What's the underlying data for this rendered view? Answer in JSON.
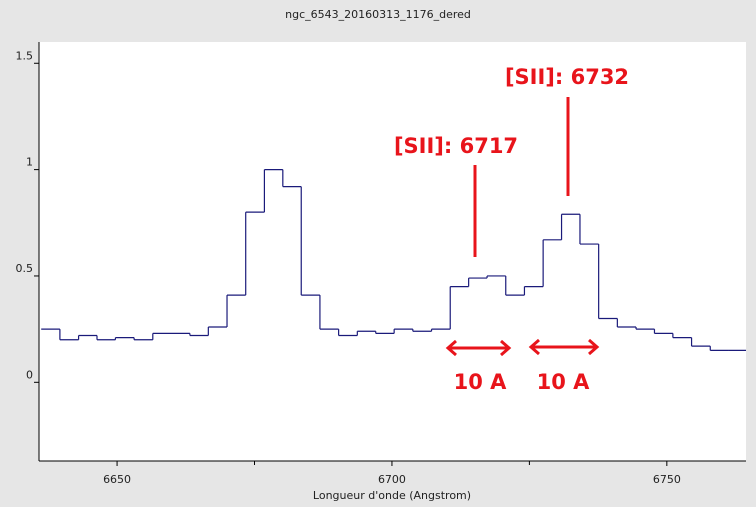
{
  "chart_data": {
    "type": "step",
    "title": "ngc_6543_20160313_1176_dered",
    "x_label": "Longueur d'onde (Angstrom)",
    "x": [
      6637.9,
      6641.3,
      6644.7,
      6648.0,
      6651.4,
      6654.8,
      6658.2,
      6661.6,
      6664.9,
      6668.3,
      6671.7,
      6675.1,
      6678.5,
      6681.8,
      6685.2,
      6688.6,
      6692.0,
      6695.4,
      6698.7,
      6702.1,
      6705.5,
      6708.9,
      6712.3,
      6715.6,
      6719.0,
      6722.4,
      6725.8,
      6729.2,
      6732.5,
      6735.9,
      6739.3,
      6742.7,
      6746.1,
      6749.4,
      6752.8,
      6756.2,
      6759.6,
      6763.0
    ],
    "values": [
      0.25,
      0.2,
      0.22,
      0.2,
      0.21,
      0.2,
      0.23,
      0.23,
      0.22,
      0.26,
      0.41,
      0.8,
      1.0,
      0.92,
      0.41,
      0.25,
      0.22,
      0.24,
      0.23,
      0.25,
      0.24,
      0.25,
      0.45,
      0.49,
      0.5,
      0.41,
      0.45,
      0.67,
      0.79,
      0.65,
      0.3,
      0.26,
      0.25,
      0.23,
      0.21,
      0.17,
      0.15,
      0.15
    ],
    "color": "#1a1a7a",
    "xlim": [
      6635.8,
      6764.4
    ],
    "xticks": [
      6650,
      6700,
      6750
    ],
    "xminor_ticks": [
      6675,
      6725
    ],
    "ylim": [
      -0.37,
      1.6
    ],
    "yticks": [
      0,
      0.5,
      1,
      1.5
    ],
    "annotations": [
      "[SII]: 6717",
      "[SII]: 6732",
      "10 A",
      "10 A"
    ]
  }
}
